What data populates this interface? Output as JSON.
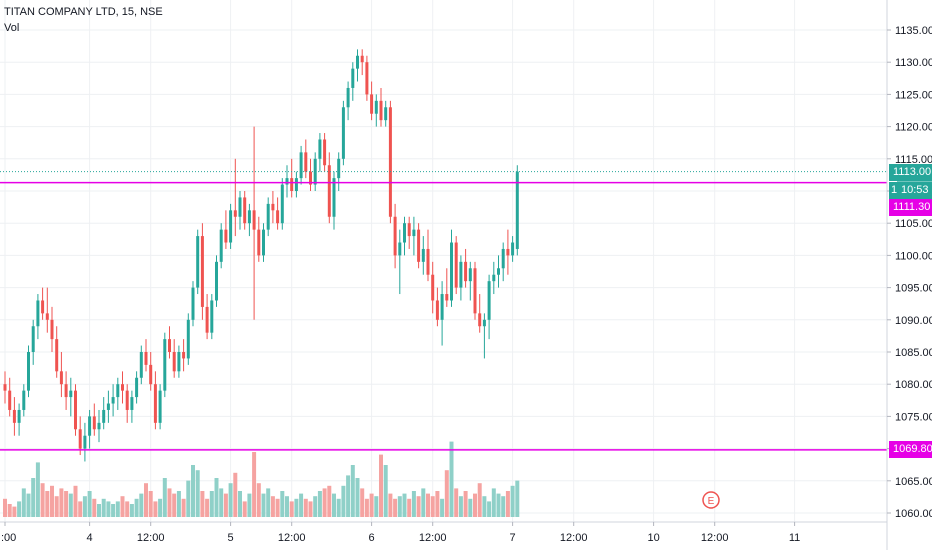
{
  "symbol_title": "TITAN COMPANY LTD, 15, NSE",
  "volume_label": "Vol",
  "price_tag": "1113.00",
  "countdown": "10:53",
  "hidden_tag_text": "1",
  "level_tags": [
    "1111.30",
    "1069.80"
  ],
  "earnings_marker": "E",
  "colors": {
    "up": "#26a69a",
    "down": "#ef5350",
    "up_volume": "#8fd0c8",
    "down_volume": "#f5a3a1",
    "level_line": "#e600e6",
    "grid": "#eef0f3",
    "axis_text": "#131722"
  },
  "chart_data": {
    "type": "candlestick",
    "title": "TITAN COMPANY LTD, 15, NSE",
    "y_axis": {
      "ticks": [
        1060,
        1065,
        1070,
        1075,
        1080,
        1085,
        1090,
        1095,
        1100,
        1105,
        1110,
        1115,
        1120,
        1125,
        1130,
        1135
      ],
      "format": "0.00",
      "ylim": [
        1059,
        1138
      ]
    },
    "x_axis": {
      "ticks": [
        {
          "label": ":00",
          "bar": 0
        },
        {
          "label": "4",
          "bar": 18
        },
        {
          "label": "12:00",
          "bar": 31
        },
        {
          "label": "5",
          "bar": 48
        },
        {
          "label": "12:00",
          "bar": 61
        },
        {
          "label": "6",
          "bar": 78
        },
        {
          "label": "12:00",
          "bar": 91
        },
        {
          "label": "7",
          "bar": 108
        },
        {
          "label": "12:00",
          "bar": 121
        },
        {
          "label": "10",
          "bar": 138
        },
        {
          "label": "12:00",
          "bar": 151
        },
        {
          "label": "11",
          "bar": 168
        }
      ]
    },
    "horizontal_lines": [
      {
        "price": 1111.3,
        "label": "1111.30"
      },
      {
        "price": 1069.8,
        "label": "1069.80"
      }
    ],
    "last_price": 1113.0,
    "grid": true,
    "ohlc": [
      [
        1080,
        1082,
        1077,
        1079
      ],
      [
        1079,
        1081,
        1075,
        1076
      ],
      [
        1076,
        1078,
        1072,
        1074
      ],
      [
        1074,
        1077,
        1072,
        1076
      ],
      [
        1076,
        1080,
        1075,
        1079
      ],
      [
        1079,
        1086,
        1078,
        1085
      ],
      [
        1085,
        1090,
        1083,
        1089
      ],
      [
        1089,
        1094,
        1087,
        1093
      ],
      [
        1093,
        1095,
        1090,
        1091
      ],
      [
        1091,
        1095,
        1088,
        1090
      ],
      [
        1090,
        1092,
        1085,
        1087
      ],
      [
        1087,
        1089,
        1081,
        1082
      ],
      [
        1082,
        1085,
        1078,
        1080
      ],
      [
        1080,
        1082,
        1076,
        1078
      ],
      [
        1078,
        1081,
        1075,
        1079
      ],
      [
        1079,
        1080,
        1072,
        1073
      ],
      [
        1073,
        1075,
        1069,
        1070
      ],
      [
        1070,
        1074,
        1068,
        1072
      ],
      [
        1072,
        1076,
        1070,
        1075
      ],
      [
        1075,
        1077,
        1072,
        1073
      ],
      [
        1073,
        1076,
        1071,
        1074
      ],
      [
        1074,
        1078,
        1073,
        1076
      ],
      [
        1076,
        1079,
        1074,
        1077
      ],
      [
        1077,
        1080,
        1075,
        1078
      ],
      [
        1078,
        1081,
        1076,
        1080
      ],
      [
        1080,
        1082,
        1077,
        1079
      ],
      [
        1079,
        1080,
        1074,
        1076
      ],
      [
        1076,
        1079,
        1074,
        1078
      ],
      [
        1078,
        1082,
        1077,
        1081
      ],
      [
        1081,
        1086,
        1080,
        1085
      ],
      [
        1085,
        1087,
        1082,
        1083
      ],
      [
        1083,
        1085,
        1079,
        1080
      ],
      [
        1080,
        1082,
        1073,
        1074
      ],
      [
        1074,
        1080,
        1073,
        1079
      ],
      [
        1079,
        1088,
        1078,
        1087
      ],
      [
        1087,
        1089,
        1084,
        1085
      ],
      [
        1085,
        1087,
        1081,
        1082
      ],
      [
        1082,
        1086,
        1081,
        1085
      ],
      [
        1085,
        1087,
        1082,
        1084
      ],
      [
        1084,
        1091,
        1083,
        1090
      ],
      [
        1090,
        1096,
        1089,
        1095
      ],
      [
        1095,
        1104,
        1094,
        1103
      ],
      [
        1103,
        1105,
        1090,
        1092
      ],
      [
        1092,
        1094,
        1087,
        1088
      ],
      [
        1088,
        1094,
        1087,
        1093
      ],
      [
        1093,
        1100,
        1092,
        1099
      ],
      [
        1099,
        1105,
        1098,
        1104
      ],
      [
        1104,
        1107,
        1101,
        1102
      ],
      [
        1102,
        1108,
        1101,
        1107
      ],
      [
        1107,
        1115,
        1103,
        1106
      ],
      [
        1106,
        1110,
        1104,
        1109
      ],
      [
        1109,
        1110,
        1104,
        1105
      ],
      [
        1105,
        1108,
        1103,
        1107
      ],
      [
        1107,
        1120,
        1090,
        1104
      ],
      [
        1104,
        1106,
        1099,
        1100
      ],
      [
        1100,
        1105,
        1099,
        1104
      ],
      [
        1104,
        1109,
        1103,
        1108
      ],
      [
        1108,
        1110,
        1105,
        1107
      ],
      [
        1107,
        1109,
        1104,
        1105
      ],
      [
        1105,
        1112,
        1104,
        1111
      ],
      [
        1111,
        1114,
        1109,
        1112
      ],
      [
        1112,
        1115,
        1109,
        1110
      ],
      [
        1110,
        1113,
        1109,
        1112
      ],
      [
        1112,
        1117,
        1111,
        1116
      ],
      [
        1116,
        1118,
        1112,
        1113
      ],
      [
        1113,
        1115,
        1110,
        1111
      ],
      [
        1111,
        1116,
        1110,
        1115
      ],
      [
        1115,
        1119,
        1113,
        1118
      ],
      [
        1118,
        1119,
        1113,
        1114
      ],
      [
        1114,
        1116,
        1105,
        1106
      ],
      [
        1106,
        1113,
        1104,
        1112
      ],
      [
        1112,
        1116,
        1110,
        1115
      ],
      [
        1115,
        1124,
        1114,
        1123
      ],
      [
        1123,
        1127,
        1121,
        1126
      ],
      [
        1126,
        1130,
        1124,
        1129
      ],
      [
        1129,
        1132,
        1127,
        1131
      ],
      [
        1131,
        1132,
        1128,
        1130
      ],
      [
        1130,
        1131,
        1124,
        1125
      ],
      [
        1125,
        1127,
        1121,
        1122
      ],
      [
        1122,
        1125,
        1120,
        1124
      ],
      [
        1124,
        1126,
        1120,
        1121
      ],
      [
        1121,
        1124,
        1120,
        1123
      ],
      [
        1123,
        1124,
        1105,
        1106
      ],
      [
        1106,
        1108,
        1098,
        1100
      ],
      [
        1100,
        1104,
        1094,
        1102
      ],
      [
        1102,
        1106,
        1100,
        1105
      ],
      [
        1105,
        1106,
        1101,
        1103
      ],
      [
        1103,
        1106,
        1100,
        1104
      ],
      [
        1104,
        1105,
        1098,
        1099
      ],
      [
        1099,
        1103,
        1097,
        1101
      ],
      [
        1101,
        1104,
        1096,
        1097
      ],
      [
        1097,
        1099,
        1091,
        1093
      ],
      [
        1093,
        1095,
        1089,
        1090
      ],
      [
        1090,
        1096,
        1086,
        1094
      ],
      [
        1094,
        1098,
        1092,
        1093
      ],
      [
        1093,
        1104,
        1092,
        1102
      ],
      [
        1102,
        1103,
        1094,
        1095
      ],
      [
        1095,
        1100,
        1093,
        1099
      ],
      [
        1099,
        1101,
        1095,
        1096
      ],
      [
        1096,
        1099,
        1093,
        1098
      ],
      [
        1098,
        1099,
        1090,
        1091
      ],
      [
        1091,
        1094,
        1088,
        1089
      ],
      [
        1089,
        1091,
        1084,
        1090
      ],
      [
        1090,
        1097,
        1087,
        1096
      ],
      [
        1096,
        1099,
        1094,
        1097
      ],
      [
        1097,
        1100,
        1095,
        1098
      ],
      [
        1098,
        1102,
        1096,
        1101
      ],
      [
        1101,
        1104,
        1097,
        1100
      ],
      [
        1100,
        1103,
        1099,
        1102
      ],
      [
        1101,
        1114,
        1100,
        1113
      ]
    ],
    "volume": [
      14,
      10,
      8,
      12,
      22,
      18,
      30,
      42,
      26,
      20,
      24,
      16,
      22,
      20,
      18,
      24,
      12,
      16,
      20,
      14,
      10,
      14,
      12,
      10,
      12,
      16,
      12,
      10,
      14,
      18,
      26,
      20,
      12,
      14,
      30,
      22,
      18,
      20,
      14,
      28,
      40,
      36,
      20,
      14,
      20,
      30,
      22,
      18,
      26,
      34,
      20,
      12,
      18,
      50,
      26,
      18,
      22,
      16,
      14,
      20,
      16,
      12,
      14,
      18,
      14,
      12,
      16,
      20,
      22,
      24,
      18,
      14,
      24,
      32,
      40,
      30,
      22,
      14,
      18,
      16,
      48,
      40,
      18,
      14,
      16,
      18,
      14,
      20,
      16,
      22,
      18,
      16,
      20,
      14,
      36,
      58,
      22,
      16,
      20,
      14,
      18,
      26,
      16,
      12,
      22,
      18,
      16,
      20,
      24,
      28
    ]
  }
}
